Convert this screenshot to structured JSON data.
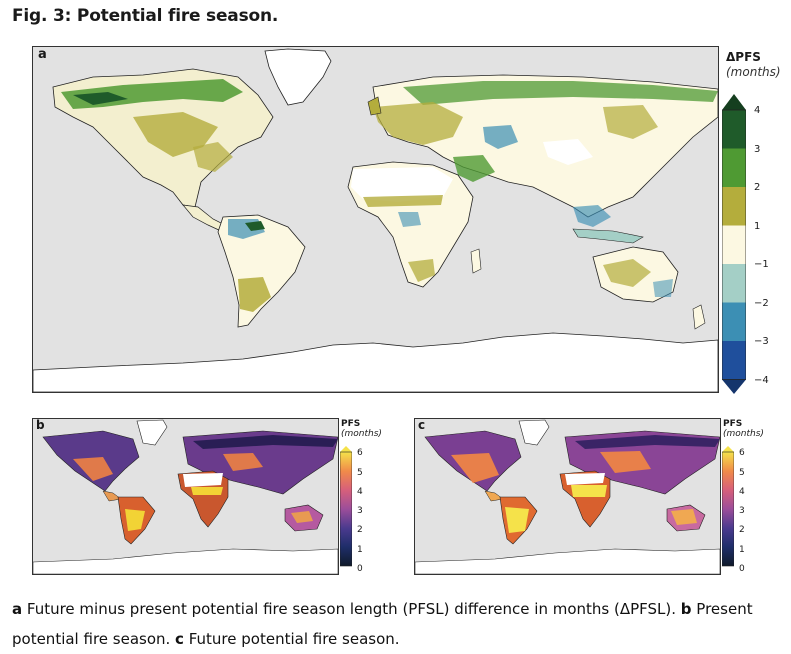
{
  "figure": {
    "title": "Fig. 3: Potential fire season."
  },
  "panel_a": {
    "label": "a",
    "colorbar": {
      "title": "ΔPFS",
      "unit": "(months)",
      "ticks": [
        "4",
        "3",
        "2",
        "1",
        "−1",
        "−2",
        "−3",
        "−4"
      ],
      "colors": [
        "#1f5b2a",
        "#4f9a33",
        "#b4ad3c",
        "#fcf8e2",
        "#a4cfc6",
        "#3c8fb4",
        "#1f4f9c"
      ],
      "arrow_top_color": "#153f1f",
      "arrow_bottom_color": "#15356c"
    }
  },
  "panel_b": {
    "label": "b",
    "colorbar": {
      "title": "PFS",
      "unit": "(months)",
      "ticks": [
        "6",
        "5",
        "4",
        "3",
        "2",
        "1",
        "0"
      ]
    }
  },
  "panel_c": {
    "label": "c",
    "colorbar": {
      "title": "PFS",
      "unit": "(months)",
      "ticks": [
        "6",
        "5",
        "4",
        "3",
        "2",
        "1",
        "0"
      ]
    }
  },
  "caption": {
    "a_label": "a",
    "a_text": " Future minus present potential fire season length (PFSL) difference in months (ΔPFSL). ",
    "b_label": "b",
    "b_text": " Present potential fire season. ",
    "c_label": "c",
    "c_text": " Future potential fire season."
  }
}
